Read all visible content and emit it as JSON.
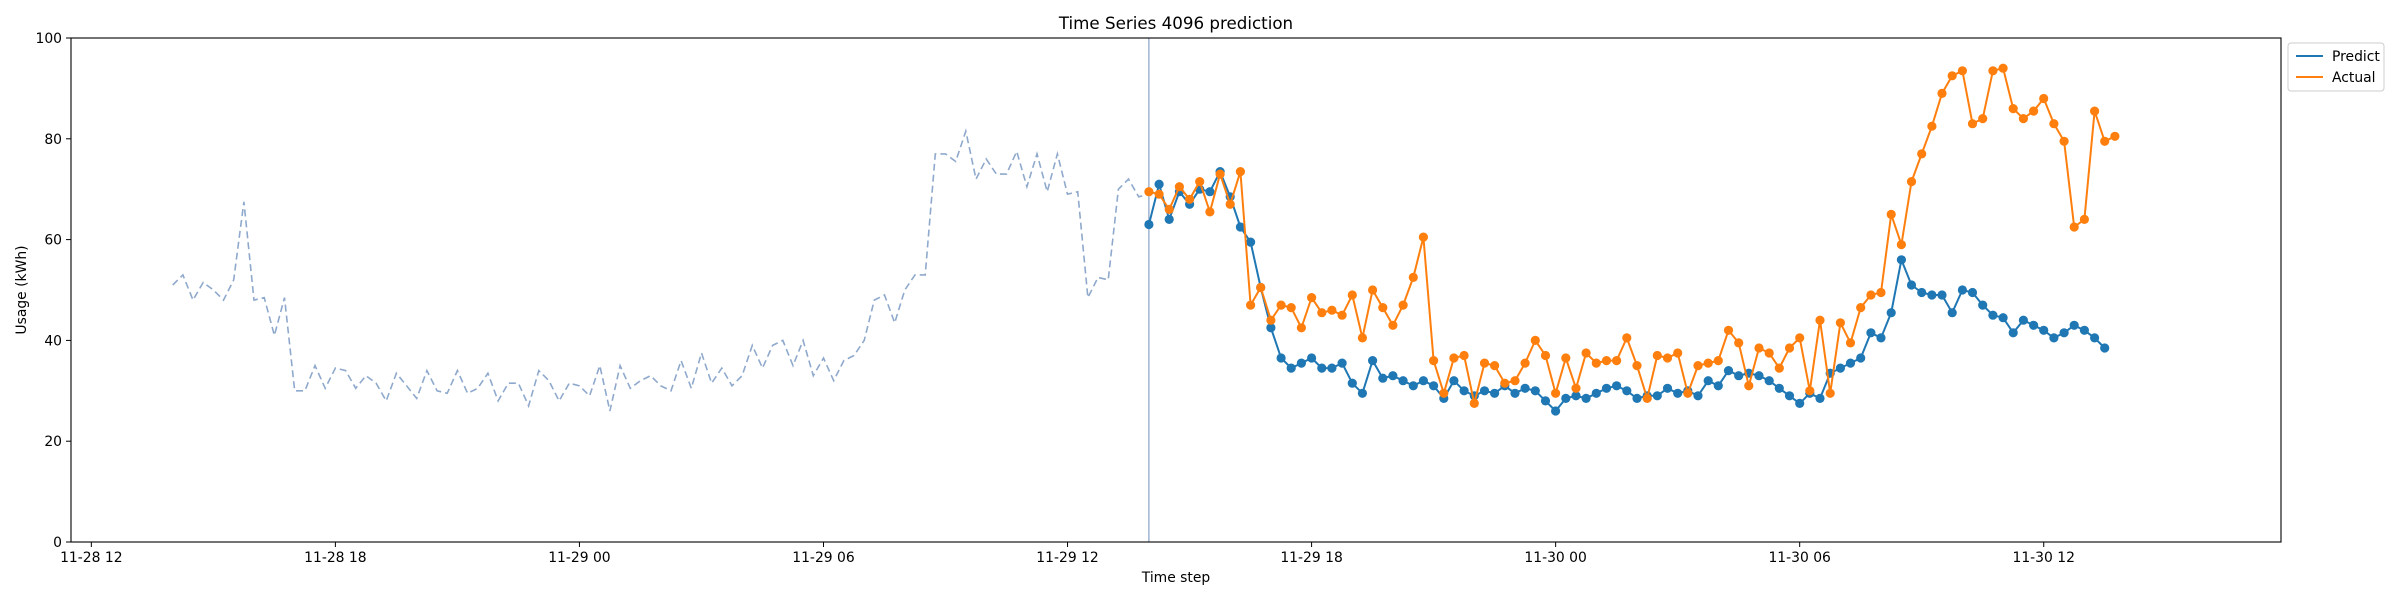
{
  "chart_data": {
    "type": "line",
    "title": "Time Series 4096 prediction",
    "xlabel": "Time step",
    "ylabel": "Usage (kWh)",
    "ylim": [
      0,
      100
    ],
    "xlim": [
      "2023-11-28 11:30",
      "2023-11-30 17:50"
    ],
    "x_ticks": [
      {
        "x": "2023-11-28 12:00",
        "label": "11-28 12"
      },
      {
        "x": "2023-11-28 18:00",
        "label": "11-28 18"
      },
      {
        "x": "2023-11-29 00:00",
        "label": "11-29 00"
      },
      {
        "x": "2023-11-29 06:00",
        "label": "11-29 06"
      },
      {
        "x": "2023-11-29 12:00",
        "label": "11-29 12"
      },
      {
        "x": "2023-11-29 18:00",
        "label": "11-29 18"
      },
      {
        "x": "2023-11-30 00:00",
        "label": "11-30 00"
      },
      {
        "x": "2023-11-30 06:00",
        "label": "11-30 06"
      },
      {
        "x": "2023-11-30 12:00",
        "label": "11-30 12"
      }
    ],
    "y_ticks": [
      0,
      20,
      40,
      60,
      80,
      100
    ],
    "grid": false,
    "legend_position": "upper-right-outside",
    "forecast_start": "2023-11-29 14:00",
    "history": {
      "start": "2023-11-28 14:00",
      "interval_minutes": 15,
      "style": "dashed",
      "color": "#8fa9cc",
      "values": [
        51,
        53,
        48,
        51.5,
        50,
        48,
        52,
        67.5,
        48,
        48.5,
        41,
        48.5,
        30,
        30,
        35,
        30.5,
        34.5,
        34,
        30.5,
        33,
        31.5,
        28,
        33.5,
        31,
        28.5,
        34,
        30,
        29.5,
        34,
        29.5,
        30.5,
        33.5,
        28,
        31.5,
        31.5,
        27,
        34,
        32,
        28,
        31.5,
        31,
        29,
        35,
        26,
        35,
        30.5,
        32,
        33,
        31,
        30,
        36,
        30.5,
        37.5,
        31.5,
        34.5,
        31,
        33,
        39,
        34.5,
        39,
        40,
        35,
        40,
        33,
        36.5,
        32,
        36,
        37,
        40,
        48,
        49,
        43.5,
        50,
        53,
        53,
        77,
        77,
        75.5,
        81.5,
        72,
        76,
        73,
        73,
        77.5,
        70.5,
        77,
        69.5,
        77,
        69,
        69.5,
        48.5,
        52.5,
        52,
        70,
        72,
        68.5,
        69
      ]
    },
    "series": [
      {
        "name": "Predict",
        "color": "#1f77b4",
        "start": "2023-11-29 14:00",
        "interval_minutes": 15,
        "values": [
          63,
          71,
          64,
          69.5,
          67,
          70,
          69.5,
          73.5,
          68.5,
          62.5,
          59.5,
          50.5,
          42.5,
          36.5,
          34.5,
          35.5,
          36.5,
          34.5,
          34.5,
          35.5,
          31.5,
          29.5,
          36,
          32.5,
          33,
          32,
          31,
          32,
          31,
          28.5,
          32,
          30,
          29,
          30,
          29.5,
          31,
          29.5,
          30.5,
          30,
          28,
          26,
          28.5,
          29,
          28.5,
          29.5,
          30.5,
          31,
          30,
          28.5,
          29,
          29,
          30.5,
          29.5,
          30,
          29,
          32,
          31,
          34,
          33,
          33.5,
          33,
          32,
          30.5,
          29,
          27.5,
          29.5,
          28.5,
          33.5,
          34.5,
          35.5,
          36.5,
          41.5,
          40.5,
          45.5,
          56,
          51,
          49.5,
          49,
          49,
          45.5,
          50,
          49.5,
          47,
          45,
          44.5,
          41.5,
          44,
          43,
          42,
          40.5,
          41.5,
          43,
          42,
          40.5,
          38.5
        ]
      },
      {
        "name": "Actual",
        "color": "#ff7f0e",
        "start": "2023-11-29 14:00",
        "interval_minutes": 15,
        "values": [
          69.5,
          69,
          66,
          70.5,
          68,
          71.5,
          65.5,
          73,
          67,
          73.5,
          47,
          50.5,
          44,
          47,
          46.5,
          42.5,
          48.5,
          45.5,
          46,
          45,
          49,
          40.5,
          50,
          46.5,
          43,
          47,
          52.5,
          60.5,
          36,
          29.5,
          36.5,
          37,
          27.5,
          35.5,
          35,
          31.5,
          32,
          35.5,
          40,
          37,
          29.5,
          36.5,
          30.5,
          37.5,
          35.5,
          36,
          36,
          40.5,
          35,
          28.5,
          37,
          36.5,
          37.5,
          29.5,
          35,
          35.5,
          36,
          42,
          39.5,
          31,
          38.5,
          37.5,
          34.5,
          38.5,
          40.5,
          30,
          44,
          29.5,
          43.5,
          39.5,
          46.5,
          49,
          49.5,
          65,
          59,
          71.5,
          77,
          82.5,
          89,
          92.5,
          93.5,
          83,
          84,
          93.5,
          94,
          86,
          84,
          85.5,
          88,
          83,
          79.5,
          62.5,
          64,
          85.5,
          79.5,
          80.5
        ]
      }
    ]
  }
}
